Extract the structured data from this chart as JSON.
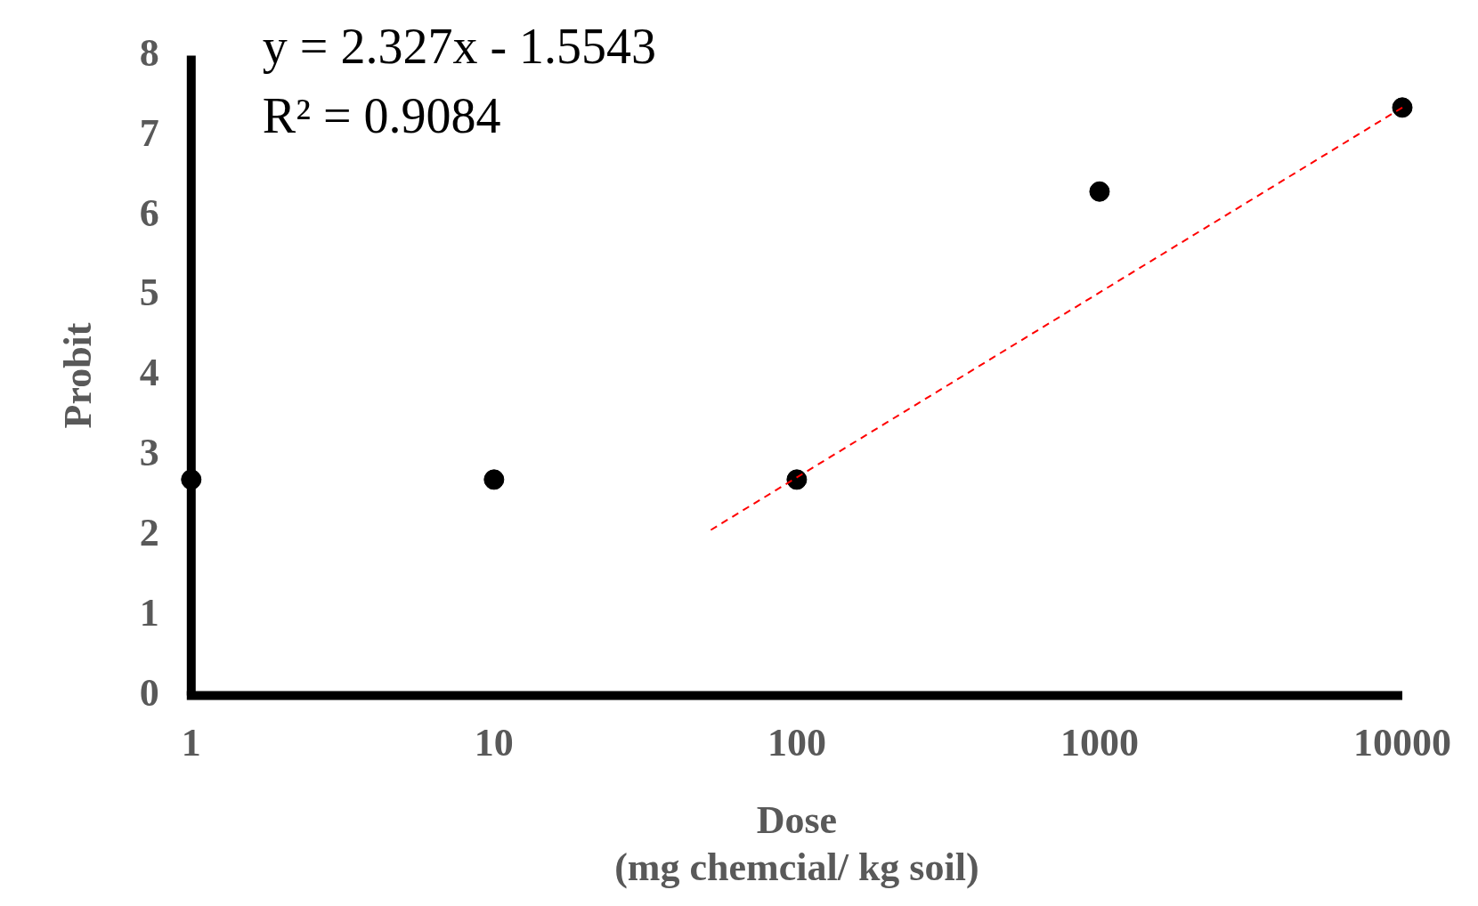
{
  "chart_data": {
    "type": "scatter",
    "xlabel": "Dose\n(mg chemcial/ kg soil)",
    "ylabel": "Probit",
    "log": "x",
    "xlim": [
      1,
      10000
    ],
    "xticks": [
      1,
      10,
      100,
      1000,
      10000
    ],
    "ylim": [
      0,
      8
    ],
    "yticks": [
      0,
      1,
      2,
      3,
      4,
      5,
      6,
      7,
      8
    ],
    "grid": false,
    "legend": false,
    "marker": "circle",
    "annotations": [
      "y = 2.327x - 1.5543",
      "R² = 0.9084"
    ],
    "series": [
      {
        "color": "#000000",
        "x": [
          1,
          10,
          100,
          1000,
          10000
        ],
        "values": [
          2.7,
          2.7,
          2.7,
          6.3,
          7.35
        ]
      },
      {
        "type": "line",
        "color": "#ff0000",
        "line_style": "dashed",
        "marker": "none",
        "x": [
          52,
          10000
        ],
        "values": [
          2.07,
          7.35
        ]
      }
    ]
  }
}
